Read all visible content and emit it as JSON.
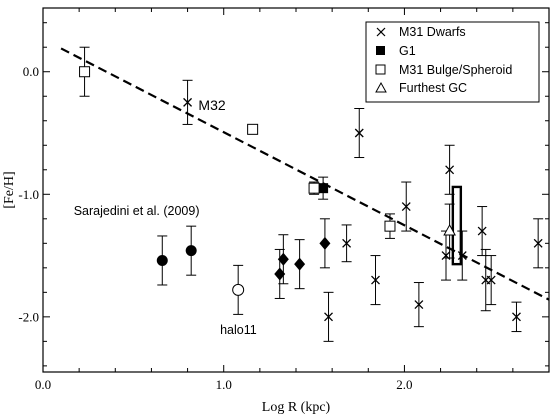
{
  "chart_data": {
    "type": "scatter",
    "xlabel": "Log R (kpc)",
    "ylabel": "[Fe/H]",
    "xlim": [
      0.0,
      2.8
    ],
    "ylim": [
      -2.45,
      0.52
    ],
    "x_ticks": [
      0.0,
      1.0,
      2.0
    ],
    "x_tick_labels": [
      "0.0",
      "1.0",
      "2.0"
    ],
    "y_ticks": [
      0.0,
      -1.0,
      -2.0
    ],
    "y_tick_labels": [
      "0.0",
      "-1.0",
      "-2.0"
    ],
    "grid": false,
    "legend_position": "top-right",
    "colors": {
      "ink": "#000000",
      "background": "#ffffff"
    },
    "series": [
      {
        "name": "M31 Dwarfs",
        "marker": "cross",
        "points": [
          {
            "x": 0.8,
            "y": -0.25,
            "err": 0.18
          },
          {
            "x": 1.75,
            "y": -0.5,
            "err": 0.2
          },
          {
            "x": 1.58,
            "y": -2.0,
            "err": 0.2
          },
          {
            "x": 1.68,
            "y": -1.4,
            "err": 0.15
          },
          {
            "x": 1.84,
            "y": -1.7,
            "err": 0.2
          },
          {
            "x": 2.01,
            "y": -1.1,
            "err": 0.2
          },
          {
            "x": 2.08,
            "y": -1.9,
            "err": 0.18
          },
          {
            "x": 2.23,
            "y": -1.5,
            "err": 0.2
          },
          {
            "x": 2.25,
            "y": -0.8,
            "err": 0.2
          },
          {
            "x": 2.32,
            "y": -1.5,
            "err": 0.2
          },
          {
            "x": 2.43,
            "y": -1.3,
            "err": 0.2
          },
          {
            "x": 2.45,
            "y": -1.7,
            "err": 0.25
          },
          {
            "x": 2.48,
            "y": -1.7,
            "err": 0.2
          },
          {
            "x": 2.62,
            "y": -2.0,
            "err": 0.12
          },
          {
            "x": 2.74,
            "y": -1.4,
            "err": 0.2
          }
        ]
      },
      {
        "name": "G1",
        "marker": "filled-square",
        "points": [
          {
            "x": 1.55,
            "y": -0.95,
            "err": 0.09
          }
        ]
      },
      {
        "name": "M31 Bulge/Spheroid",
        "marker": "open-square",
        "points": [
          {
            "x": 0.23,
            "y": 0.0,
            "err": 0.2
          },
          {
            "x": 1.16,
            "y": -0.47,
            "err": 0.0
          },
          {
            "x": 1.5,
            "y": -0.95,
            "err": 0.05
          },
          {
            "x": 1.92,
            "y": -1.26,
            "err": 0.1
          }
        ]
      },
      {
        "name": "Furthest GC",
        "marker": "open-triangle",
        "points": [
          {
            "x": 2.25,
            "y": -1.3,
            "err": 0.22
          }
        ]
      }
    ],
    "extra_points": [
      {
        "marker": "filled-circle",
        "x": 0.66,
        "y": -1.54,
        "err": 0.2
      },
      {
        "marker": "filled-circle",
        "x": 0.82,
        "y": -1.46,
        "err": 0.2
      },
      {
        "marker": "open-circle",
        "x": 1.08,
        "y": -1.78,
        "err": 0.2
      },
      {
        "marker": "filled-diamond",
        "x": 1.31,
        "y": -1.65,
        "err": 0.2
      },
      {
        "marker": "filled-diamond",
        "x": 1.33,
        "y": -1.53,
        "err": 0.2
      },
      {
        "marker": "filled-diamond",
        "x": 1.42,
        "y": -1.57,
        "err": 0.2
      },
      {
        "marker": "filled-diamond",
        "x": 1.56,
        "y": -1.4,
        "err": 0.2
      }
    ],
    "fit_line": {
      "style": "dashed",
      "x0": 0.1,
      "y0": 0.19,
      "x1": 2.8,
      "y1": -1.86
    },
    "range_box": {
      "x": 2.29,
      "y_top": -0.94,
      "y_bottom": -1.57
    },
    "annotations": [
      {
        "id": "m32",
        "text": "M32",
        "x": 0.86,
        "y": -0.27
      },
      {
        "id": "sarajedini",
        "text": "Sarajedini et al. (2009)",
        "x": 0.17,
        "y": -1.13
      },
      {
        "id": "halo11",
        "text": "halo11",
        "x": 0.98,
        "y": -2.1
      }
    ]
  }
}
